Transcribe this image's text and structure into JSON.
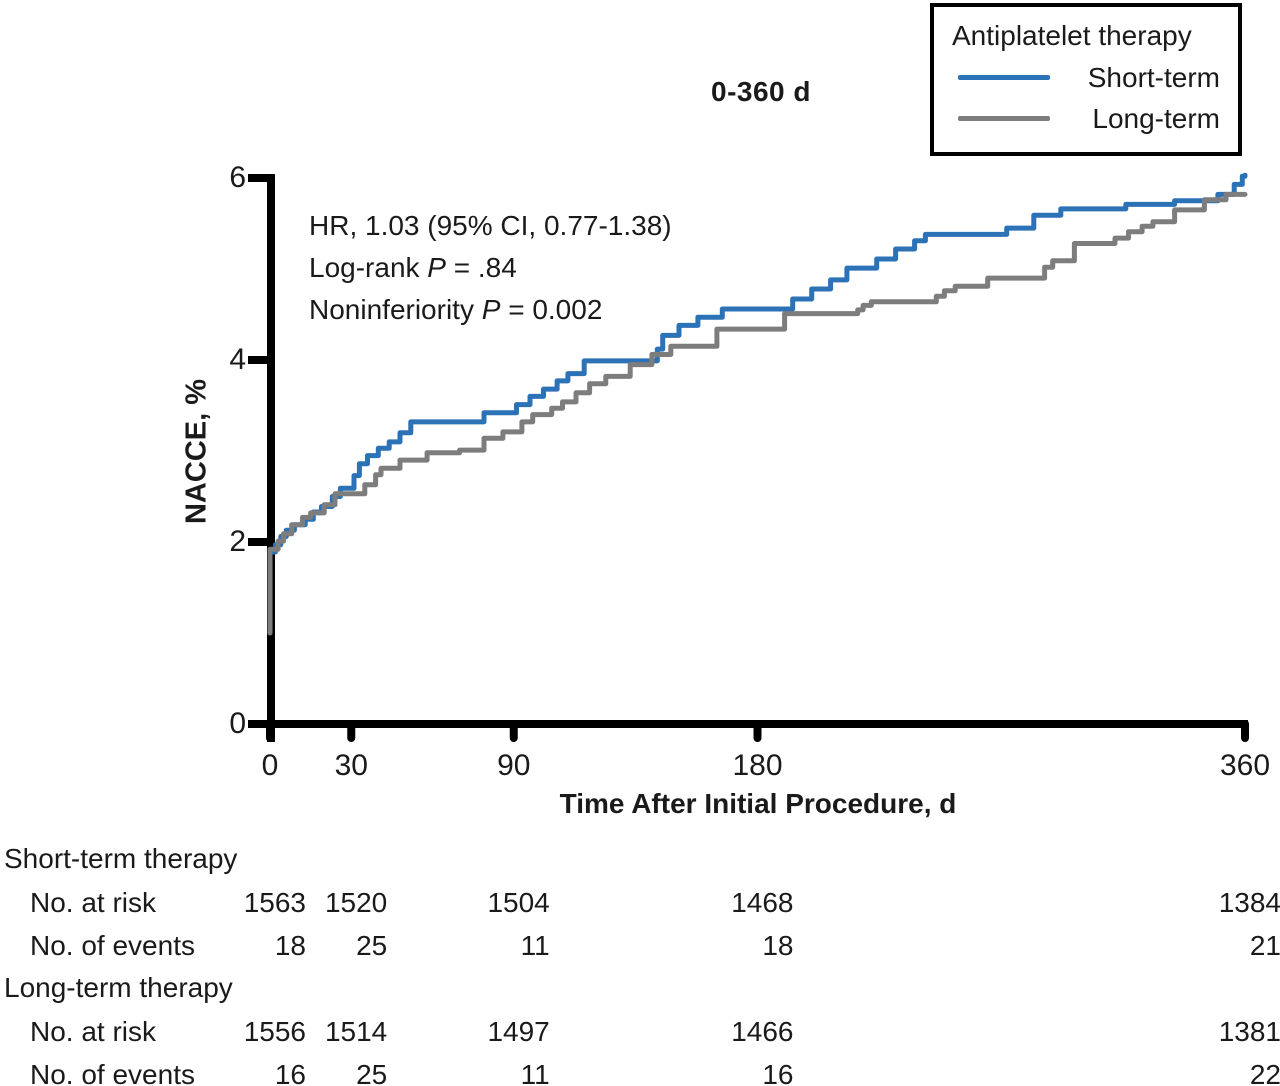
{
  "figure": {
    "title": "0-360 d",
    "legend": {
      "title": "Antiplatelet therapy",
      "position": "top-right",
      "items": [
        {
          "label": "Short-term",
          "color": "#2c72b7"
        },
        {
          "label": "Long-term",
          "color": "#7d7d7d"
        }
      ]
    },
    "annotation": {
      "line1": "HR, 1.03 (95% CI, 0.77-1.38)",
      "line2_pre": "Log-rank ",
      "line2_var": "P",
      "line2_post": " = .84",
      "line3_pre": "Noninferiority ",
      "line3_var": "P",
      "line3_post": " = 0.002"
    }
  },
  "chart_data": {
    "type": "line",
    "subtype": "kaplan-meier-step",
    "title": "0-360 d",
    "xlabel": "Time After Initial Procedure, d",
    "ylabel": "NACCE, %",
    "xlim": [
      0,
      360
    ],
    "ylim": [
      0,
      6
    ],
    "xticks": [
      0,
      30,
      90,
      180,
      360
    ],
    "yticks": [
      0,
      2,
      4,
      6
    ],
    "grid": false,
    "legend_position": "top-right",
    "annotations": [
      "HR, 1.03 (95% CI, 0.77-1.38)",
      "Log-rank P = .84",
      "Noninferiority P = 0.002"
    ],
    "series": [
      {
        "name": "Short-term",
        "color": "#2c72b7",
        "steps": [
          [
            0,
            1.0
          ],
          [
            0,
            1.89
          ],
          [
            2,
            1.97
          ],
          [
            4,
            2.06
          ],
          [
            6,
            2.13
          ],
          [
            9,
            2.19
          ],
          [
            13,
            2.25
          ],
          [
            16,
            2.33
          ],
          [
            19,
            2.39
          ],
          [
            23,
            2.5
          ],
          [
            26,
            2.59
          ],
          [
            31,
            2.73
          ],
          [
            33,
            2.86
          ],
          [
            36,
            2.95
          ],
          [
            40,
            3.03
          ],
          [
            44,
            3.1
          ],
          [
            48,
            3.2
          ],
          [
            52,
            3.32
          ],
          [
            79,
            3.42
          ],
          [
            91,
            3.51
          ],
          [
            96,
            3.6
          ],
          [
            101,
            3.68
          ],
          [
            106,
            3.77
          ],
          [
            110,
            3.85
          ],
          [
            116,
            3.99
          ],
          [
            143,
            4.12
          ],
          [
            145,
            4.27
          ],
          [
            151,
            4.38
          ],
          [
            158,
            4.47
          ],
          [
            167,
            4.56
          ],
          [
            193,
            4.67
          ],
          [
            200,
            4.78
          ],
          [
            207,
            4.88
          ],
          [
            213,
            5.01
          ],
          [
            224,
            5.11
          ],
          [
            231,
            5.22
          ],
          [
            238,
            5.31
          ],
          [
            242,
            5.38
          ],
          [
            272,
            5.45
          ],
          [
            282,
            5.59
          ],
          [
            292,
            5.66
          ],
          [
            316,
            5.71
          ],
          [
            334,
            5.75
          ],
          [
            350,
            5.82
          ],
          [
            356,
            5.93
          ],
          [
            359,
            6.02
          ],
          [
            360,
            6.03
          ]
        ]
      },
      {
        "name": "Long-term",
        "color": "#7d7d7d",
        "steps": [
          [
            0,
            1.0
          ],
          [
            0,
            1.92
          ],
          [
            3,
            2.01
          ],
          [
            5,
            2.09
          ],
          [
            8,
            2.19
          ],
          [
            12,
            2.27
          ],
          [
            15,
            2.32
          ],
          [
            20,
            2.41
          ],
          [
            24,
            2.53
          ],
          [
            35,
            2.63
          ],
          [
            39,
            2.74
          ],
          [
            41,
            2.81
          ],
          [
            48,
            2.9
          ],
          [
            58,
            2.98
          ],
          [
            70,
            3.01
          ],
          [
            79,
            3.14
          ],
          [
            86,
            3.21
          ],
          [
            93,
            3.32
          ],
          [
            97,
            3.4
          ],
          [
            104,
            3.47
          ],
          [
            108,
            3.54
          ],
          [
            113,
            3.64
          ],
          [
            118,
            3.74
          ],
          [
            124,
            3.82
          ],
          [
            133,
            3.95
          ],
          [
            141,
            4.06
          ],
          [
            148,
            4.15
          ],
          [
            165,
            4.34
          ],
          [
            190,
            4.51
          ],
          [
            217,
            4.55
          ],
          [
            219,
            4.6
          ],
          [
            222,
            4.64
          ],
          [
            246,
            4.7
          ],
          [
            249,
            4.76
          ],
          [
            253,
            4.81
          ],
          [
            265,
            4.9
          ],
          [
            286,
            5.02
          ],
          [
            289,
            5.09
          ],
          [
            297,
            5.28
          ],
          [
            312,
            5.34
          ],
          [
            317,
            5.41
          ],
          [
            322,
            5.47
          ],
          [
            326,
            5.52
          ],
          [
            334,
            5.65
          ],
          [
            345,
            5.76
          ],
          [
            353,
            5.82
          ],
          [
            360,
            5.82
          ]
        ]
      }
    ]
  },
  "risk_table": {
    "time_columns": [
      0,
      30,
      90,
      180,
      360
    ],
    "groups": [
      {
        "label": "Short-term therapy",
        "rows": [
          {
            "label": "No. at risk",
            "values": [
              "1563",
              "1520",
              "1504",
              "1468",
              "1384"
            ]
          },
          {
            "label": "No. of events",
            "values": [
              "18",
              "25",
              "11",
              "18",
              "21"
            ]
          }
        ]
      },
      {
        "label": "Long-term therapy",
        "rows": [
          {
            "label": "No. at risk",
            "values": [
              "1556",
              "1514",
              "1497",
              "1466",
              "1381"
            ]
          },
          {
            "label": "No. of events",
            "values": [
              "16",
              "25",
              "11",
              "16",
              "22"
            ]
          }
        ]
      }
    ]
  }
}
